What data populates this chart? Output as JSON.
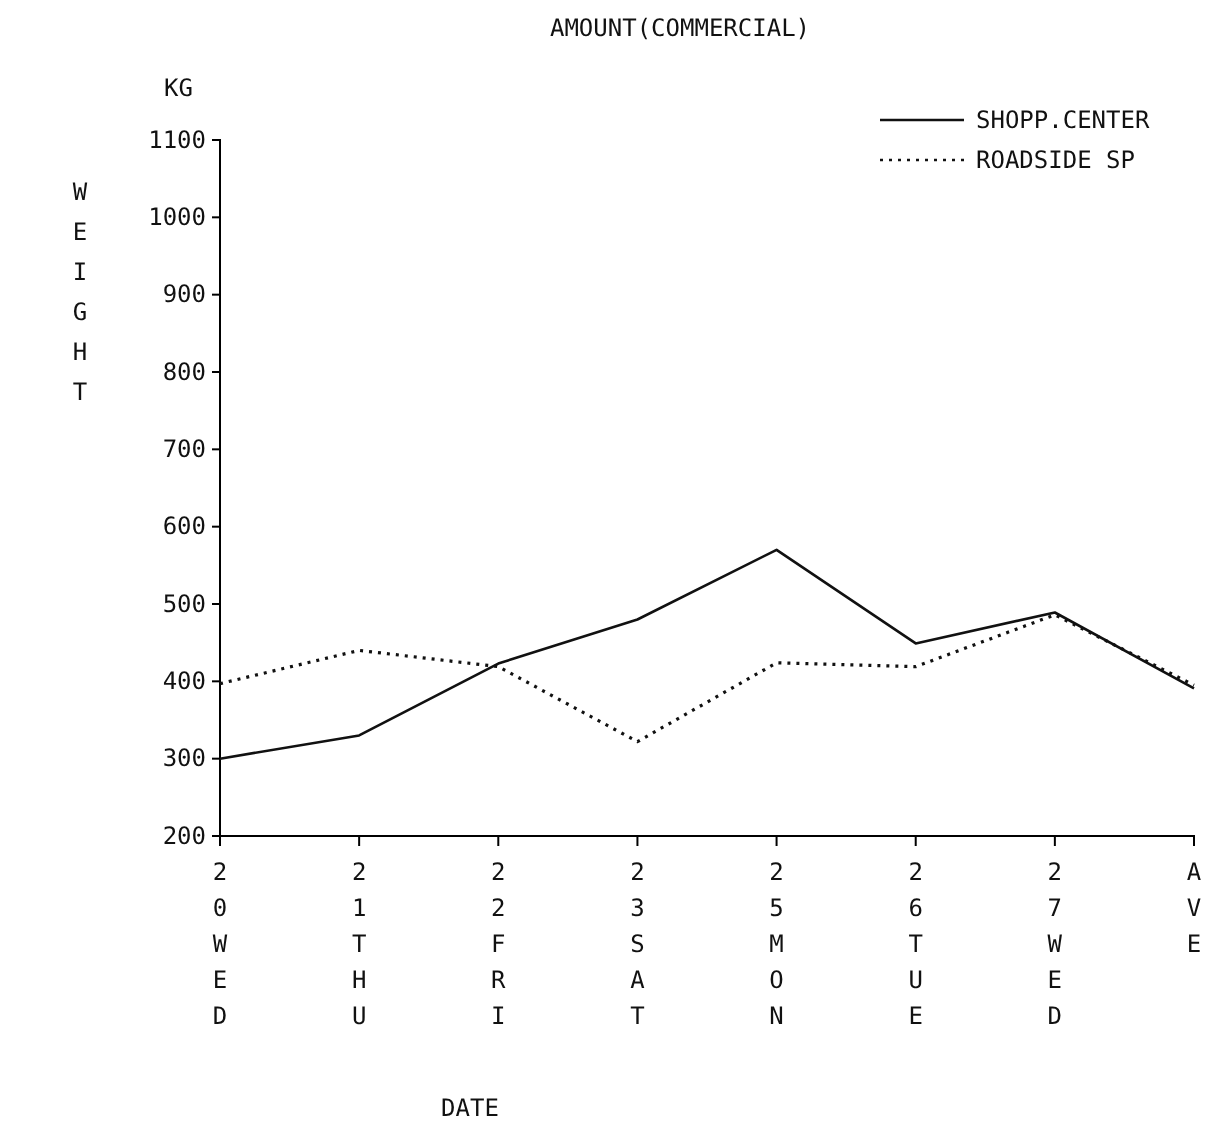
{
  "chart_data": {
    "type": "line",
    "title": "AMOUNT(COMMERCIAL)",
    "ylabel": "WEIGHT",
    "y2label": "KG",
    "xlabel": "DATE",
    "categories": [
      "20WED",
      "21THU",
      "22FRI",
      "23SAT",
      "25MON",
      "26TUE",
      "27WED",
      "AVE"
    ],
    "series": [
      {
        "name": "SHOPP.CENTER",
        "color": "#111111",
        "line_style": "solid",
        "values": [
          300,
          330,
          423,
          480,
          570,
          449,
          489,
          391
        ]
      },
      {
        "name": "ROADSIDE SP",
        "color": "#111111",
        "line_style": "dotted",
        "values": [
          397,
          440,
          419,
          322,
          424,
          419,
          486,
          395
        ]
      }
    ],
    "ylim": [
      200,
      1100
    ],
    "yticks": [
      200,
      300,
      400,
      500,
      600,
      700,
      800,
      900,
      1000,
      1100
    ],
    "legend": "top right",
    "grid": false,
    "marker": "none"
  }
}
